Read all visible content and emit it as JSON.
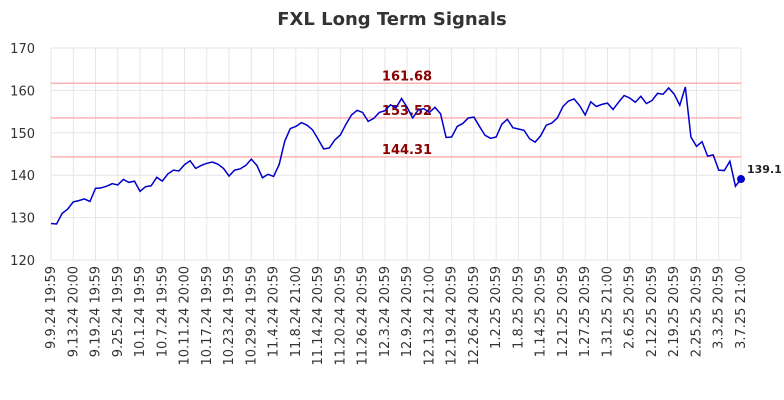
{
  "chart_data": {
    "type": "line",
    "title": "FXL Long Term Signals",
    "categories": [
      "9.9.24 19:59",
      null,
      null,
      null,
      "9.13.24 20:00",
      null,
      null,
      null,
      "9.19.24 19:59",
      null,
      null,
      null,
      "9.25.24 19:59",
      null,
      null,
      null,
      "10.1.24 19:59",
      null,
      null,
      null,
      "10.7.24 19:59",
      null,
      null,
      null,
      "10.11.24 20:00",
      null,
      null,
      null,
      "10.17.24 19:59",
      null,
      null,
      null,
      "10.23.24 19:59",
      null,
      null,
      null,
      "10.29.24 19:59",
      null,
      null,
      null,
      "11.4.24 20:59",
      null,
      null,
      null,
      "11.8.24 21:00",
      null,
      null,
      null,
      "11.14.24 20:59",
      null,
      null,
      null,
      "11.20.24 20:59",
      null,
      null,
      null,
      "11.26.24 20:59",
      null,
      null,
      null,
      "12.3.24 20:59",
      null,
      null,
      null,
      "12.9.24 20:59",
      null,
      null,
      null,
      "12.13.24 21:00",
      null,
      null,
      null,
      "12.19.24 20:59",
      null,
      null,
      null,
      "12.26.24 20:59",
      null,
      null,
      null,
      "1.2.25 20:59",
      null,
      null,
      null,
      "1.8.25 20:59",
      null,
      null,
      null,
      "1.14.25 20:59",
      null,
      null,
      null,
      "1.21.25 20:59",
      null,
      null,
      null,
      "1.27.25 20:59",
      null,
      null,
      null,
      "1.31.25 21:00",
      null,
      null,
      null,
      "2.6.25 20:59",
      null,
      null,
      null,
      "2.12.25 20:59",
      null,
      null,
      null,
      "2.19.25 20:59",
      null,
      null,
      null,
      "2.25.25 20:59",
      null,
      null,
      null,
      "3.3.25 20:59",
      null,
      null,
      null,
      "3.7.25 21:00"
    ],
    "series": [
      {
        "color": "#0000cc",
        "values": [
          128.6,
          128.5,
          131,
          132,
          133.7,
          134,
          134.4,
          133.8,
          136.9,
          137,
          137.4,
          138,
          137.7,
          139,
          138.3,
          138.6,
          136.2,
          137.3,
          137.5,
          139.5,
          138.6,
          140.3,
          141.2,
          141,
          142.5,
          143.4,
          141.6,
          142.3,
          142.8,
          143.1,
          142.6,
          141.6,
          139.8,
          141.2,
          141.5,
          142.3,
          143.8,
          142.3,
          139.4,
          140.2,
          139.7,
          142.5,
          148,
          151,
          151.5,
          152.4,
          151.8,
          150.7,
          148.5,
          146.2,
          146.4,
          148.3,
          149.5,
          152,
          154.2,
          155.3,
          154.8,
          152.7,
          153.4,
          154.8,
          155.2,
          156.6,
          155.9,
          158.1,
          156,
          153.5,
          155.4,
          155.7,
          154.8,
          156,
          154.5,
          148.9,
          149,
          151.5,
          152.2,
          153.5,
          153.7,
          151.5,
          149.4,
          148.7,
          149,
          152,
          153.2,
          151.2,
          150.9,
          150.6,
          148.6,
          147.8,
          149.3,
          151.8,
          152.3,
          153.5,
          156.2,
          157.5,
          158,
          156.4,
          154.2,
          157.3,
          156.2,
          156.7,
          157,
          155.5,
          157.2,
          158.8,
          158.2,
          157.2,
          158.6,
          156.9,
          157.6,
          159.3,
          159.1,
          160.6,
          159.1,
          156.5,
          160.8,
          149,
          146.8,
          147.9,
          144.5,
          144.8,
          141.2,
          141.1,
          143.3,
          137.4,
          139.1
        ]
      }
    ],
    "hlines": [
      161.68,
      153.52,
      144.31
    ],
    "hline_color": "#ffb3b3",
    "hline_label_color": "#8b0000",
    "ylim": [
      120,
      170
    ],
    "yticks": [
      120,
      130,
      140,
      150,
      160,
      170
    ],
    "grid": true
  }
}
